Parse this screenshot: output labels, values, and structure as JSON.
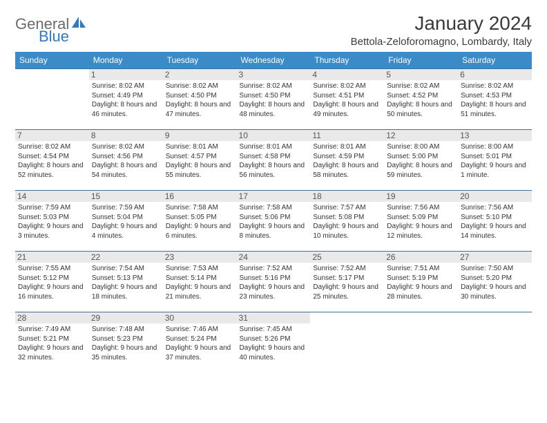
{
  "logo": {
    "part1": "General",
    "part2": "Blue"
  },
  "title": "January 2024",
  "location": "Bettola-Zeloforomagno, Lombardy, Italy",
  "day_headers": [
    "Sunday",
    "Monday",
    "Tuesday",
    "Wednesday",
    "Thursday",
    "Friday",
    "Saturday"
  ],
  "colors": {
    "header_bg": "#3b8bc8",
    "row_divider": "#3b6fa0",
    "shade_bg": "#e9e9e9",
    "logo_gray": "#6b6b6b",
    "logo_blue": "#2f7ac0"
  },
  "weeks": [
    [
      {
        "num": "",
        "sunrise": "",
        "sunset": "",
        "daylight": ""
      },
      {
        "num": "1",
        "sunrise": "Sunrise: 8:02 AM",
        "sunset": "Sunset: 4:49 PM",
        "daylight": "Daylight: 8 hours and 46 minutes."
      },
      {
        "num": "2",
        "sunrise": "Sunrise: 8:02 AM",
        "sunset": "Sunset: 4:50 PM",
        "daylight": "Daylight: 8 hours and 47 minutes."
      },
      {
        "num": "3",
        "sunrise": "Sunrise: 8:02 AM",
        "sunset": "Sunset: 4:50 PM",
        "daylight": "Daylight: 8 hours and 48 minutes."
      },
      {
        "num": "4",
        "sunrise": "Sunrise: 8:02 AM",
        "sunset": "Sunset: 4:51 PM",
        "daylight": "Daylight: 8 hours and 49 minutes."
      },
      {
        "num": "5",
        "sunrise": "Sunrise: 8:02 AM",
        "sunset": "Sunset: 4:52 PM",
        "daylight": "Daylight: 8 hours and 50 minutes."
      },
      {
        "num": "6",
        "sunrise": "Sunrise: 8:02 AM",
        "sunset": "Sunset: 4:53 PM",
        "daylight": "Daylight: 8 hours and 51 minutes."
      }
    ],
    [
      {
        "num": "7",
        "sunrise": "Sunrise: 8:02 AM",
        "sunset": "Sunset: 4:54 PM",
        "daylight": "Daylight: 8 hours and 52 minutes."
      },
      {
        "num": "8",
        "sunrise": "Sunrise: 8:02 AM",
        "sunset": "Sunset: 4:56 PM",
        "daylight": "Daylight: 8 hours and 54 minutes."
      },
      {
        "num": "9",
        "sunrise": "Sunrise: 8:01 AM",
        "sunset": "Sunset: 4:57 PM",
        "daylight": "Daylight: 8 hours and 55 minutes."
      },
      {
        "num": "10",
        "sunrise": "Sunrise: 8:01 AM",
        "sunset": "Sunset: 4:58 PM",
        "daylight": "Daylight: 8 hours and 56 minutes."
      },
      {
        "num": "11",
        "sunrise": "Sunrise: 8:01 AM",
        "sunset": "Sunset: 4:59 PM",
        "daylight": "Daylight: 8 hours and 58 minutes."
      },
      {
        "num": "12",
        "sunrise": "Sunrise: 8:00 AM",
        "sunset": "Sunset: 5:00 PM",
        "daylight": "Daylight: 8 hours and 59 minutes."
      },
      {
        "num": "13",
        "sunrise": "Sunrise: 8:00 AM",
        "sunset": "Sunset: 5:01 PM",
        "daylight": "Daylight: 9 hours and 1 minute."
      }
    ],
    [
      {
        "num": "14",
        "sunrise": "Sunrise: 7:59 AM",
        "sunset": "Sunset: 5:03 PM",
        "daylight": "Daylight: 9 hours and 3 minutes."
      },
      {
        "num": "15",
        "sunrise": "Sunrise: 7:59 AM",
        "sunset": "Sunset: 5:04 PM",
        "daylight": "Daylight: 9 hours and 4 minutes."
      },
      {
        "num": "16",
        "sunrise": "Sunrise: 7:58 AM",
        "sunset": "Sunset: 5:05 PM",
        "daylight": "Daylight: 9 hours and 6 minutes."
      },
      {
        "num": "17",
        "sunrise": "Sunrise: 7:58 AM",
        "sunset": "Sunset: 5:06 PM",
        "daylight": "Daylight: 9 hours and 8 minutes."
      },
      {
        "num": "18",
        "sunrise": "Sunrise: 7:57 AM",
        "sunset": "Sunset: 5:08 PM",
        "daylight": "Daylight: 9 hours and 10 minutes."
      },
      {
        "num": "19",
        "sunrise": "Sunrise: 7:56 AM",
        "sunset": "Sunset: 5:09 PM",
        "daylight": "Daylight: 9 hours and 12 minutes."
      },
      {
        "num": "20",
        "sunrise": "Sunrise: 7:56 AM",
        "sunset": "Sunset: 5:10 PM",
        "daylight": "Daylight: 9 hours and 14 minutes."
      }
    ],
    [
      {
        "num": "21",
        "sunrise": "Sunrise: 7:55 AM",
        "sunset": "Sunset: 5:12 PM",
        "daylight": "Daylight: 9 hours and 16 minutes."
      },
      {
        "num": "22",
        "sunrise": "Sunrise: 7:54 AM",
        "sunset": "Sunset: 5:13 PM",
        "daylight": "Daylight: 9 hours and 18 minutes."
      },
      {
        "num": "23",
        "sunrise": "Sunrise: 7:53 AM",
        "sunset": "Sunset: 5:14 PM",
        "daylight": "Daylight: 9 hours and 21 minutes."
      },
      {
        "num": "24",
        "sunrise": "Sunrise: 7:52 AM",
        "sunset": "Sunset: 5:16 PM",
        "daylight": "Daylight: 9 hours and 23 minutes."
      },
      {
        "num": "25",
        "sunrise": "Sunrise: 7:52 AM",
        "sunset": "Sunset: 5:17 PM",
        "daylight": "Daylight: 9 hours and 25 minutes."
      },
      {
        "num": "26",
        "sunrise": "Sunrise: 7:51 AM",
        "sunset": "Sunset: 5:19 PM",
        "daylight": "Daylight: 9 hours and 28 minutes."
      },
      {
        "num": "27",
        "sunrise": "Sunrise: 7:50 AM",
        "sunset": "Sunset: 5:20 PM",
        "daylight": "Daylight: 9 hours and 30 minutes."
      }
    ],
    [
      {
        "num": "28",
        "sunrise": "Sunrise: 7:49 AM",
        "sunset": "Sunset: 5:21 PM",
        "daylight": "Daylight: 9 hours and 32 minutes."
      },
      {
        "num": "29",
        "sunrise": "Sunrise: 7:48 AM",
        "sunset": "Sunset: 5:23 PM",
        "daylight": "Daylight: 9 hours and 35 minutes."
      },
      {
        "num": "30",
        "sunrise": "Sunrise: 7:46 AM",
        "sunset": "Sunset: 5:24 PM",
        "daylight": "Daylight: 9 hours and 37 minutes."
      },
      {
        "num": "31",
        "sunrise": "Sunrise: 7:45 AM",
        "sunset": "Sunset: 5:26 PM",
        "daylight": "Daylight: 9 hours and 40 minutes."
      },
      {
        "num": "",
        "sunrise": "",
        "sunset": "",
        "daylight": ""
      },
      {
        "num": "",
        "sunrise": "",
        "sunset": "",
        "daylight": ""
      },
      {
        "num": "",
        "sunrise": "",
        "sunset": "",
        "daylight": ""
      }
    ]
  ]
}
